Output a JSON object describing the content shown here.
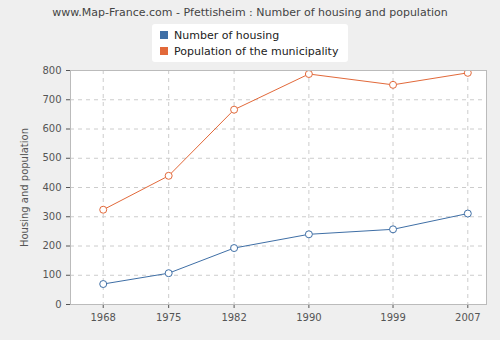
{
  "chart_data": {
    "type": "line",
    "title": "www.Map-France.com - Pfettisheim : Number of housing and population",
    "y_label": "Housing and population",
    "x": [
      1968,
      1975,
      1982,
      1990,
      1999,
      2007
    ],
    "series": [
      {
        "name": "Number of housing",
        "color": "#3f6fa6",
        "marker": "circle",
        "line_style": "solid",
        "values": [
          70,
          107,
          193,
          240,
          257,
          311
        ]
      },
      {
        "name": "Population of the municipality",
        "color": "#e2693a",
        "marker": "circle",
        "line_style": "solid",
        "values": [
          324,
          440,
          666,
          788,
          751,
          792
        ]
      }
    ],
    "xlim": [
      1964.5,
      2009
    ],
    "xticks": [
      1968,
      1975,
      1982,
      1990,
      1999,
      2007
    ],
    "ylim": [
      0,
      800
    ],
    "yticks": [
      0,
      100,
      200,
      300,
      400,
      500,
      600,
      700,
      800
    ],
    "grid": true,
    "legend": "top"
  }
}
